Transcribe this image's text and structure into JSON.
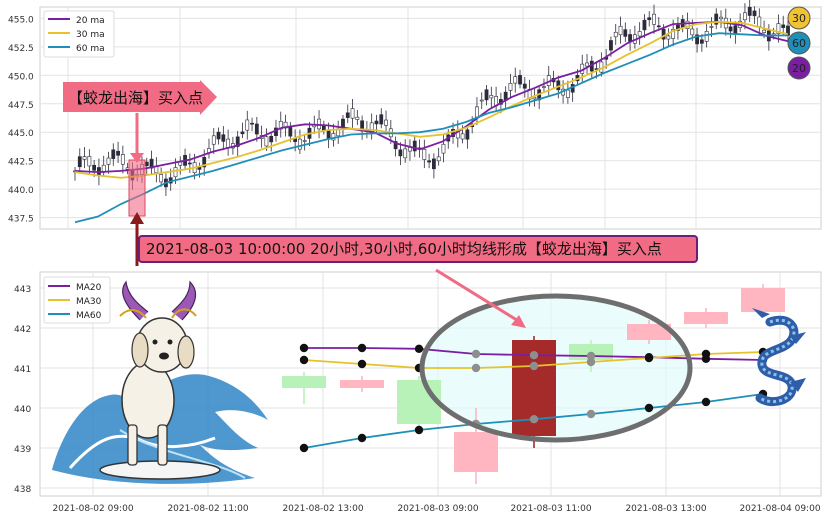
{
  "chart_data": [
    {
      "type": "line",
      "panel": "top",
      "y_ticks": [
        "455.0",
        "452.5",
        "450.0",
        "447.5",
        "445.0",
        "442.5",
        "440.0",
        "437.5"
      ],
      "ylim": [
        436.5,
        456.0
      ],
      "grid": true,
      "legend": {
        "placement": "top-left",
        "entries": [
          "20 ma",
          "30 ma",
          "60 ma"
        ]
      },
      "series": [
        {
          "name": "20 ma",
          "color": "#7b1fa2",
          "values": [
            441.6,
            441.5,
            441.6,
            441.8,
            442.2,
            442.6,
            443.3,
            443.8,
            444.5,
            445.4,
            445.7,
            445.6,
            445.3,
            445.0,
            444.0,
            443.5,
            444.2,
            445.5,
            447.0,
            448.1,
            448.9,
            449.8,
            450.4,
            451.5,
            452.8,
            453.7,
            454.5,
            454.6,
            454.7,
            454.4,
            453.5,
            453.0
          ]
        },
        {
          "name": "30 ma",
          "color": "#e6c22e",
          "values": [
            441.5,
            441.2,
            441.0,
            441.2,
            441.5,
            441.8,
            442.3,
            442.8,
            443.4,
            444.1,
            444.8,
            445.2,
            445.3,
            445.2,
            444.9,
            444.6,
            444.8,
            445.4,
            446.3,
            447.3,
            448.2,
            449.0,
            449.8,
            450.7,
            451.8,
            452.8,
            453.9,
            454.5,
            454.7,
            454.6,
            454.1,
            453.6
          ]
        },
        {
          "name": "60 ma",
          "color": "#1f8fb8",
          "values": [
            437.1,
            437.6,
            438.7,
            439.6,
            440.6,
            441.1,
            441.6,
            442.2,
            442.8,
            443.4,
            443.9,
            444.4,
            444.8,
            444.9,
            444.9,
            445.0,
            445.3,
            445.9,
            446.7,
            447.2,
            447.8,
            448.4,
            449.3,
            450.2,
            451.0,
            451.8,
            452.7,
            453.4,
            453.7,
            453.6,
            453.5,
            453.5
          ]
        }
      ],
      "annotations": [
        {
          "text": "【蛟龙出海】买入点",
          "target_series": "candles",
          "date": "2021-08-03 10:00:00"
        }
      ],
      "badges": [
        {
          "text": "30",
          "color": "#f1c232"
        },
        {
          "text": "60",
          "color": "#1f8fb8"
        },
        {
          "text": "20",
          "color": "#7b1fa2"
        }
      ]
    },
    {
      "type": "line",
      "panel": "bottom",
      "x_tick_labels": [
        "2021-08-02 09:00",
        "2021-08-02 11:00",
        "2021-08-02 13:00",
        "2021-08-03 09:00",
        "2021-08-03 11:00",
        "2021-08-03 13:00",
        "2021-08-04 09:00"
      ],
      "y_ticks": [
        "443",
        "442",
        "441",
        "440",
        "439",
        "438"
      ],
      "ylim": [
        437.8,
        443.4
      ],
      "grid": true,
      "legend": {
        "placement": "top-left",
        "entries": [
          "MA20",
          "MA30",
          "MA60"
        ]
      },
      "candles": [
        {
          "open": 440.5,
          "close": 440.8,
          "high": 440.9,
          "low": 440.1,
          "color": "#b8f2b8"
        },
        {
          "open": 440.7,
          "close": 440.5,
          "high": 440.8,
          "low": 440.4,
          "color": "#ffb6c1"
        },
        {
          "open": 439.6,
          "close": 440.7,
          "high": 440.8,
          "low": 439.5,
          "color": "#b8f2b8"
        },
        {
          "open": 439.4,
          "close": 438.4,
          "high": 440.0,
          "low": 438.1,
          "color": "#ffb6c1"
        },
        {
          "open": 439.3,
          "close": 441.7,
          "high": 441.8,
          "low": 439.0,
          "color": "#a52a2a"
        },
        {
          "open": 441.2,
          "close": 441.6,
          "high": 441.7,
          "low": 440.9,
          "color": "#b8f2b8"
        },
        {
          "open": 441.7,
          "close": 442.1,
          "high": 442.2,
          "low": 441.6,
          "color": "#ffb6c1"
        },
        {
          "open": 442.1,
          "close": 442.4,
          "high": 442.5,
          "low": 442.0,
          "color": "#ffb6c1"
        },
        {
          "open": 442.4,
          "close": 443.0,
          "high": 443.1,
          "low": 442.3,
          "color": "#ffb6c1"
        }
      ],
      "series": [
        {
          "name": "MA20",
          "color": "#7b1fa2",
          "values": [
            441.5,
            441.5,
            441.48,
            441.35,
            441.32,
            441.3,
            441.27,
            441.23,
            441.2
          ]
        },
        {
          "name": "MA30",
          "color": "#e6c22e",
          "values": [
            441.2,
            441.1,
            441.0,
            441.0,
            441.05,
            441.15,
            441.25,
            441.35,
            441.4
          ]
        },
        {
          "name": "MA60",
          "color": "#1f8fb8",
          "values": [
            439.0,
            439.25,
            439.45,
            439.6,
            439.72,
            439.85,
            440.0,
            440.15,
            440.35
          ]
        }
      ],
      "markers_on": [
        "MA20",
        "MA30",
        "MA60"
      ]
    }
  ],
  "callout": {
    "text": "2021-08-03 10:00:00 20小时,30小时,60小时均线形成【蛟龙出海】买入点"
  },
  "arrow_label": {
    "text": "【蛟龙出海】买入点"
  },
  "colors": {
    "highlight_ellipse": "#6e6e6e",
    "callout_bg": "#f06b83",
    "arrow": "#f06b83"
  }
}
